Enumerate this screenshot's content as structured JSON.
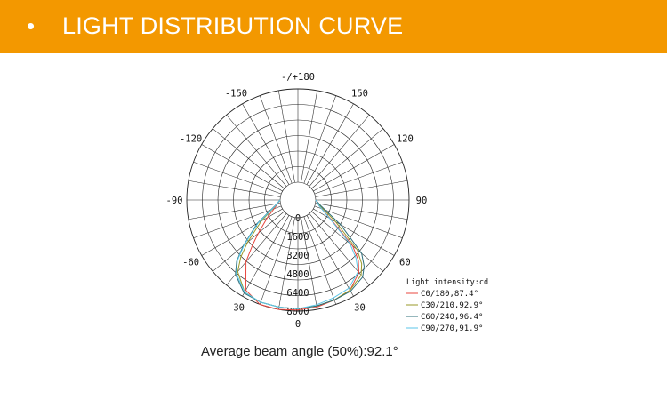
{
  "header": {
    "bullet": "•",
    "title": "LIGHT DISTRIBUTION CURVE"
  },
  "colors": {
    "header_bg": "#f39800",
    "grid": "#222222",
    "c0": "#e8473f",
    "c30": "#9a9a2a",
    "c60": "#2e6f7a",
    "c90": "#5bc6e8"
  },
  "caption": "Average beam angle (50%):92.1°",
  "chart_data": {
    "type": "polar",
    "title": "",
    "angle_labels": [
      {
        "angle": 180,
        "label": "-/+180"
      },
      {
        "angle": 150,
        "label": "150"
      },
      {
        "angle": -150,
        "label": "-150"
      },
      {
        "angle": 120,
        "label": "120"
      },
      {
        "angle": -120,
        "label": "-120"
      },
      {
        "angle": 90,
        "label": "90"
      },
      {
        "angle": -90,
        "label": "-90"
      },
      {
        "angle": 60,
        "label": "60"
      },
      {
        "angle": -60,
        "label": "-60"
      },
      {
        "angle": 30,
        "label": "30"
      },
      {
        "angle": -30,
        "label": "-30"
      },
      {
        "angle": 0,
        "label": "0"
      }
    ],
    "radial_ticks": [
      "0",
      "1600",
      "3200",
      "4800",
      "6400",
      "8000"
    ],
    "r_max": 8000,
    "grid": true,
    "legend_title": "Light intensity:cd",
    "legend_placement": "bottom-right",
    "angles": [
      -90,
      -75,
      -60,
      -50,
      -45,
      -40,
      -30,
      -20,
      -10,
      0,
      10,
      20,
      30,
      40,
      45,
      50,
      60,
      75,
      90
    ],
    "series": [
      {
        "name": "C0/180,87.4°",
        "color_key": "c0",
        "values": [
          0,
          400,
          1500,
          2900,
          4000,
          5400,
          7400,
          8000,
          8000,
          7900,
          7800,
          7600,
          7400,
          6600,
          5800,
          4600,
          1700,
          350,
          0
        ]
      },
      {
        "name": "C30/210,92.9°",
        "color_key": "c30",
        "values": [
          0,
          500,
          2100,
          4100,
          5400,
          6500,
          7600,
          7800,
          7800,
          7800,
          7700,
          7600,
          7400,
          6900,
          6200,
          5100,
          2200,
          450,
          0
        ]
      },
      {
        "name": "C60/240,96.4°",
        "color_key": "c60",
        "values": [
          0,
          550,
          2500,
          4600,
          5900,
          6800,
          7700,
          7800,
          7800,
          7800,
          7700,
          7600,
          7500,
          7100,
          6500,
          5600,
          2700,
          550,
          0
        ]
      },
      {
        "name": "C90/270,91.9°",
        "color_key": "c90",
        "values": [
          0,
          500,
          2400,
          4500,
          5800,
          6700,
          7600,
          7800,
          7800,
          7800,
          7600,
          7400,
          7200,
          6500,
          5500,
          4300,
          1600,
          350,
          0
        ]
      }
    ]
  }
}
